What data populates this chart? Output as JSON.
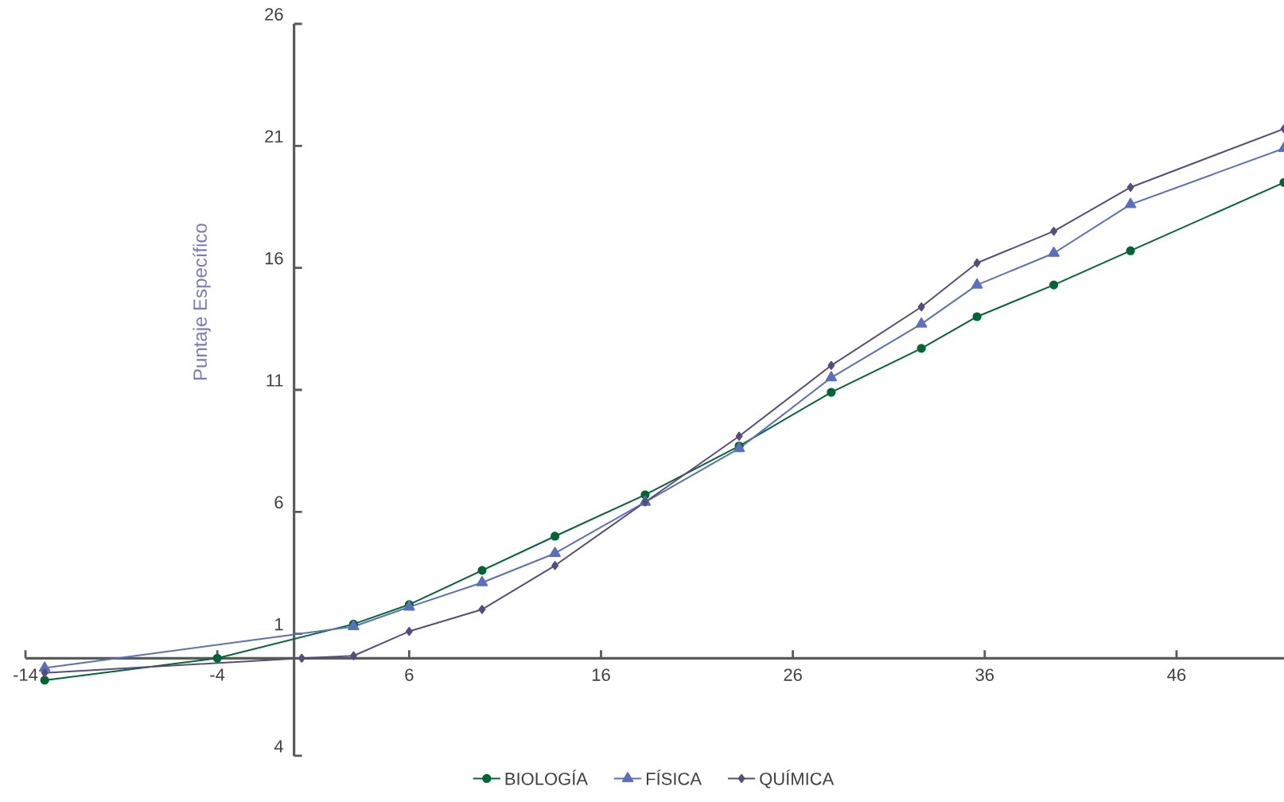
{
  "chart_data": {
    "type": "line",
    "ylabel": "Puntaje Específico",
    "xlim": [
      -14,
      51.6
    ],
    "ylim": [
      -4,
      26
    ],
    "xticks": [
      -14,
      -4,
      6,
      16,
      26,
      36,
      46
    ],
    "yticks": [
      {
        "value": -4,
        "label": "4"
      },
      1,
      6,
      11,
      16,
      21,
      26
    ],
    "grid": false,
    "legend": "bottom",
    "series": [
      {
        "name": "BIOLOGÍA",
        "color": "#006633",
        "marker": "circle",
        "x": [
          -13,
          -4,
          3.1,
          6,
          9.8,
          13.6,
          18.3,
          23.2,
          28.0,
          32.7,
          35.6,
          39.6,
          43.6,
          51.6
        ],
        "values": [
          -0.9,
          0,
          1.4,
          2.2,
          3.6,
          5.0,
          6.7,
          8.7,
          10.9,
          12.7,
          14.0,
          15.3,
          16.7,
          19.5
        ]
      },
      {
        "name": "FÍSICA",
        "color": "#5b6fbf",
        "marker": "triangle",
        "x": [
          -13,
          3.1,
          6,
          9.8,
          13.6,
          18.3,
          23.2,
          28.0,
          32.7,
          35.6,
          39.6,
          43.6,
          51.6
        ],
        "values": [
          -0.4,
          1.3,
          2.1,
          3.1,
          4.3,
          6.4,
          8.6,
          11.5,
          13.7,
          15.3,
          16.6,
          18.6,
          20.9
        ]
      },
      {
        "name": "QUÍMICA",
        "color": "#584c7e",
        "marker": "diamond",
        "x": [
          -13,
          0.4,
          3.1,
          6,
          9.8,
          13.6,
          18.3,
          23.2,
          28.0,
          32.7,
          35.6,
          39.6,
          43.6,
          51.6
        ],
        "values": [
          -0.6,
          0,
          0.1,
          1.1,
          2.0,
          3.8,
          6.4,
          9.1,
          12.0,
          14.4,
          16.2,
          17.5,
          19.3,
          21.7
        ]
      }
    ]
  }
}
